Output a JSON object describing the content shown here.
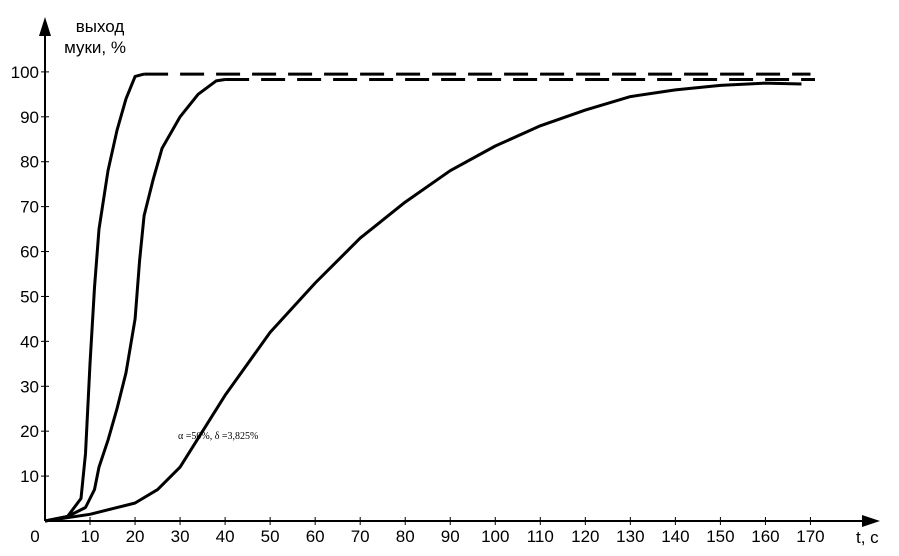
{
  "chart_data": {
    "type": "line",
    "y_label": "выход\nмуки, %",
    "x_label": "t, c",
    "annotation": "α =50%, δ =3,825%",
    "xlim": [
      0,
      185
    ],
    "ylim": [
      0,
      112
    ],
    "xticks": [
      0,
      10,
      20,
      30,
      40,
      50,
      60,
      70,
      80,
      90,
      100,
      110,
      120,
      130,
      140,
      150,
      160,
      170
    ],
    "yticks": [
      10,
      20,
      30,
      40,
      50,
      60,
      70,
      80,
      90,
      100
    ],
    "series": [
      {
        "color": "#000000",
        "dashed": false,
        "x": [
          0,
          5,
          8,
          9,
          10,
          11,
          12,
          14,
          16,
          18,
          20,
          22
        ],
        "values": [
          0,
          1,
          5,
          15,
          35,
          52,
          65,
          78,
          87,
          94,
          99,
          99.5
        ]
      },
      {
        "color": "#000000",
        "dashed": true,
        "x": [
          22,
          170
        ],
        "values": [
          99.5,
          99.5
        ]
      },
      {
        "color": "#000000",
        "dashed": false,
        "x": [
          0,
          5,
          9,
          11,
          12,
          14,
          16,
          18,
          20,
          21,
          22,
          24,
          26,
          30,
          34,
          38,
          40
        ],
        "values": [
          0,
          1,
          3,
          7,
          12,
          18,
          25,
          33,
          45,
          58,
          68,
          76,
          83,
          90,
          95,
          98,
          98.3
        ]
      },
      {
        "color": "#000000",
        "dashed": true,
        "x": [
          40,
          171
        ],
        "values": [
          98.3,
          98.3
        ]
      },
      {
        "color": "#000000",
        "dashed": false,
        "x": [
          0,
          10,
          20,
          25,
          30,
          35,
          40,
          50,
          60,
          70,
          80,
          90,
          100,
          110,
          120,
          130,
          140,
          150,
          160,
          168
        ],
        "values": [
          0,
          1.5,
          4,
          7,
          12,
          20,
          28,
          42,
          53,
          63,
          71,
          78,
          83.5,
          88,
          91.5,
          94.5,
          96,
          97,
          97.5,
          97.3
        ]
      }
    ]
  }
}
